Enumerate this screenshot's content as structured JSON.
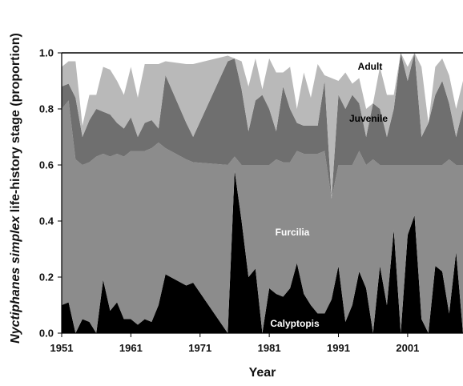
{
  "chart_data": {
    "type": "area",
    "stacked": true,
    "xlabel": "Year",
    "ylabel_italic": "Nyctiphanes simplex",
    "ylabel_rest": " life-history stage (proportion)",
    "xlim": [
      1951,
      2009
    ],
    "ylim": [
      0,
      1.0
    ],
    "x_ticks": [
      "1951",
      "1961",
      "1971",
      "1981",
      "1991",
      "2001"
    ],
    "y_ticks": [
      "0.0",
      "0.2",
      "0.4",
      "0.6",
      "0.8",
      "1.0"
    ],
    "x": [
      1951,
      1952,
      1953,
      1954,
      1955,
      1956,
      1957,
      1958,
      1959,
      1960,
      1961,
      1962,
      1963,
      1964,
      1965,
      1966,
      1969,
      1970,
      1975,
      1976,
      1977,
      1978,
      1979,
      1980,
      1981,
      1982,
      1983,
      1984,
      1985,
      1986,
      1987,
      1988,
      1989,
      1990,
      1991,
      1992,
      1993,
      1994,
      1995,
      1996,
      1997,
      1998,
      1999,
      2000,
      2001,
      2002,
      2003,
      2004,
      2005,
      2006,
      2007,
      2008,
      2009
    ],
    "series": [
      {
        "name": "Calyptopis",
        "color": "#000000",
        "label_color": "#ffffff",
        "values": [
          0.1,
          0.11,
          0.0,
          0.05,
          0.04,
          0.0,
          0.19,
          0.08,
          0.11,
          0.05,
          0.05,
          0.03,
          0.05,
          0.04,
          0.1,
          0.21,
          0.17,
          0.18,
          0.0,
          0.58,
          0.4,
          0.2,
          0.23,
          0.0,
          0.16,
          0.14,
          0.13,
          0.16,
          0.25,
          0.14,
          0.1,
          0.07,
          0.07,
          0.12,
          0.24,
          0.04,
          0.1,
          0.22,
          0.16,
          0.0,
          0.24,
          0.1,
          0.37,
          0.0,
          0.35,
          0.42,
          0.05,
          0.0,
          0.24,
          0.22,
          0.07,
          0.29,
          0.0
        ]
      },
      {
        "name": "Furcilia",
        "color": "#8c8c8c",
        "label_color": "#ffffff",
        "values": [
          0.7,
          0.72,
          0.62,
          0.55,
          0.57,
          0.63,
          0.45,
          0.55,
          0.53,
          0.58,
          0.6,
          0.62,
          0.6,
          0.62,
          0.58,
          0.45,
          0.45,
          0.43,
          0.6,
          0.05,
          0.2,
          0.4,
          0.37,
          0.6,
          0.44,
          0.48,
          0.48,
          0.45,
          0.4,
          0.5,
          0.54,
          0.57,
          0.58,
          0.36,
          0.36,
          0.56,
          0.5,
          0.43,
          0.44,
          0.62,
          0.36,
          0.5,
          0.23,
          0.6,
          0.25,
          0.18,
          0.55,
          0.6,
          0.36,
          0.38,
          0.55,
          0.31,
          0.6
        ]
      },
      {
        "name": "Juvenile",
        "color": "#6f6f6f",
        "label_color": "#000000",
        "values": [
          0.08,
          0.06,
          0.22,
          0.1,
          0.15,
          0.17,
          0.15,
          0.15,
          0.11,
          0.1,
          0.12,
          0.05,
          0.1,
          0.1,
          0.05,
          0.26,
          0.13,
          0.09,
          0.37,
          0.35,
          0.27,
          0.12,
          0.23,
          0.25,
          0.2,
          0.1,
          0.27,
          0.19,
          0.1,
          0.1,
          0.1,
          0.1,
          0.25,
          0.0,
          0.25,
          0.2,
          0.25,
          0.17,
          0.1,
          0.2,
          0.2,
          0.1,
          0.2,
          0.4,
          0.3,
          0.4,
          0.1,
          0.15,
          0.25,
          0.3,
          0.2,
          0.1,
          0.2
        ]
      },
      {
        "name": "Adult",
        "color": "#b9b9b9",
        "label_color": "#000000",
        "values": [
          0.07,
          0.08,
          0.13,
          0.04,
          0.09,
          0.05,
          0.16,
          0.16,
          0.15,
          0.12,
          0.18,
          0.14,
          0.21,
          0.2,
          0.23,
          0.05,
          0.21,
          0.26,
          0.02,
          0.0,
          0.1,
          0.16,
          0.15,
          0.02,
          0.18,
          0.21,
          0.05,
          0.15,
          0.05,
          0.19,
          0.1,
          0.22,
          0.02,
          0.43,
          0.05,
          0.13,
          0.04,
          0.09,
          0.1,
          0.0,
          0.15,
          0.15,
          0.05,
          0.0,
          0.05,
          0.0,
          0.25,
          0.0,
          0.1,
          0.08,
          0.1,
          0.1,
          0.1
        ]
      }
    ]
  }
}
